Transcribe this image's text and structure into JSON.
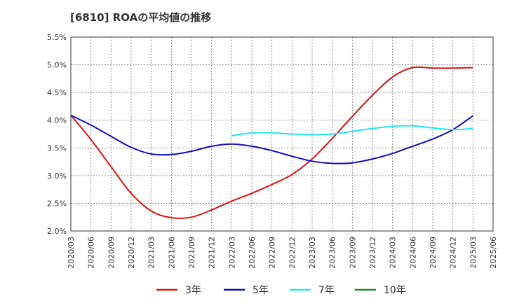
{
  "title": "[6810]  ROAの平均値の推移",
  "chart_data": {
    "type": "line",
    "title": "[6810]  ROAの平均値の推移",
    "xlabel": "",
    "ylabel": "",
    "ylim": [
      2.0,
      5.5
    ],
    "yticks": [
      "2.0%",
      "2.5%",
      "3.0%",
      "3.5%",
      "4.0%",
      "4.5%",
      "5.0%",
      "5.5%"
    ],
    "x": [
      "2020/03",
      "2020/06",
      "2020/09",
      "2020/12",
      "2021/03",
      "2021/06",
      "2021/09",
      "2021/12",
      "2022/03",
      "2022/06",
      "2022/09",
      "2022/12",
      "2023/03",
      "2023/06",
      "2023/09",
      "2023/12",
      "2024/03",
      "2024/06",
      "2024/09",
      "2024/12",
      "2025/03",
      "2025/06"
    ],
    "grid": true,
    "legend_position": "bottom",
    "series": [
      {
        "name": "3年",
        "color": "#dd1111",
        "values": [
          4.09,
          3.65,
          3.16,
          2.68,
          2.36,
          2.24,
          2.25,
          2.38,
          2.54,
          2.68,
          2.84,
          3.02,
          3.3,
          3.67,
          4.07,
          4.45,
          4.78,
          4.95,
          4.94,
          4.94,
          4.95,
          null
        ]
      },
      {
        "name": "5年",
        "color": "#1111bb",
        "values": [
          4.09,
          3.91,
          3.71,
          3.51,
          3.39,
          3.38,
          3.44,
          3.53,
          3.57,
          3.53,
          3.45,
          3.35,
          3.26,
          3.22,
          3.23,
          3.3,
          3.4,
          3.53,
          3.66,
          3.83,
          4.08,
          null
        ]
      },
      {
        "name": "7年",
        "color": "#22e5ee",
        "values": [
          null,
          null,
          null,
          null,
          null,
          null,
          null,
          null,
          3.72,
          3.77,
          3.77,
          3.75,
          3.74,
          3.75,
          3.8,
          3.85,
          3.89,
          3.9,
          3.86,
          3.83,
          3.85,
          null
        ]
      },
      {
        "name": "10年",
        "color": "#228822",
        "values": [
          null,
          null,
          null,
          null,
          null,
          null,
          null,
          null,
          null,
          null,
          null,
          null,
          null,
          null,
          null,
          null,
          null,
          null,
          null,
          null,
          null,
          null
        ]
      }
    ]
  }
}
